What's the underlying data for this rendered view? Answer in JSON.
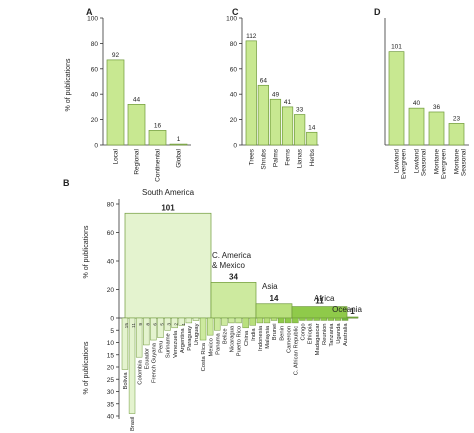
{
  "chart_data": [
    {
      "type": "bar",
      "panel": "A",
      "ylabel": "% of publications",
      "ylim": [
        0,
        100
      ],
      "yticks": [
        0,
        20,
        40,
        60,
        80,
        100
      ],
      "categories": [
        "Local",
        "Regional",
        "Continental",
        "Global"
      ],
      "values": [
        67,
        32,
        11.5,
        0.7
      ],
      "labels": [
        "92",
        "44",
        "16",
        "1"
      ]
    },
    {
      "type": "bar",
      "panel": "C",
      "ylim": [
        0,
        100
      ],
      "yticks": [
        0,
        20,
        40,
        60,
        80,
        100
      ],
      "categories": [
        "Trees",
        "Shrubs",
        "Palms",
        "Ferns",
        "Lianas",
        "Herbs"
      ],
      "values": [
        82,
        47,
        36,
        30,
        24,
        10
      ],
      "labels": [
        "112",
        "64",
        "49",
        "41",
        "33",
        "14"
      ]
    },
    {
      "type": "bar",
      "panel": "D",
      "ylim": [
        0,
        100
      ],
      "yticks": [
        0,
        20,
        40,
        60,
        80,
        100
      ],
      "categories": [
        "Lowland Evergreen",
        "Lowland Seasonal",
        "Montane Evergreen",
        "Montane Seasonal"
      ],
      "values": [
        73.5,
        29,
        26,
        17
      ],
      "labels": [
        "101",
        "40",
        "36",
        "23"
      ]
    },
    {
      "type": "bar",
      "panel": "B",
      "ylabel_top": "% of publications",
      "ylabel_bottom": "% of publications",
      "ylim_top": [
        0,
        80
      ],
      "yticks_top": [
        0,
        20,
        40,
        60,
        80
      ],
      "ylim_bottom": [
        0,
        40
      ],
      "yticks_bottom": [
        0,
        5,
        10,
        15,
        20,
        25,
        30,
        35,
        40
      ],
      "regions": [
        {
          "name": "South America",
          "count": "101",
          "value": 73.5
        },
        {
          "name": "C. America & Mexico",
          "count": "34",
          "value": 25
        },
        {
          "name": "Asia",
          "count": "14",
          "value": 10
        },
        {
          "name": "Africa",
          "count": "11",
          "value": 8
        },
        {
          "name": "Oceania",
          "count": "1",
          "value": 0.7
        }
      ],
      "countries": [
        {
          "name": "Bolivia",
          "value": 21,
          "region": 0
        },
        {
          "name": "Brasil",
          "value": 39,
          "region": 0
        },
        {
          "name": "Colombia",
          "value": 16,
          "region": 0
        },
        {
          "name": "Ecuador",
          "value": 11,
          "region": 0
        },
        {
          "name": "French Guyana",
          "value": 9,
          "region": 0
        },
        {
          "name": "Peru",
          "value": 8,
          "region": 0
        },
        {
          "name": "Suriname",
          "value": 5,
          "region": 0
        },
        {
          "name": "Venezuela",
          "value": 4,
          "region": 0
        },
        {
          "name": "Argentina",
          "value": 3,
          "region": 0
        },
        {
          "name": "Paraguay",
          "value": 2,
          "region": 0
        },
        {
          "name": "Uruguay",
          "value": 1,
          "region": 0
        },
        {
          "name": "Costa Rica",
          "value": 9,
          "region": 1
        },
        {
          "name": "Mexico",
          "value": 7,
          "region": 1
        },
        {
          "name": "Panama",
          "value": 5,
          "region": 1
        },
        {
          "name": "Belize",
          "value": 3,
          "region": 1
        },
        {
          "name": "Nicaragua",
          "value": 2,
          "region": 1
        },
        {
          "name": "Puerto Rico",
          "value": 2,
          "region": 1
        },
        {
          "name": "China",
          "value": 4,
          "region": 2
        },
        {
          "name": "India",
          "value": 3,
          "region": 2
        },
        {
          "name": "Indonesia",
          "value": 2,
          "region": 2
        },
        {
          "name": "Malaysia",
          "value": 2,
          "region": 2
        },
        {
          "name": "Brunei",
          "value": 1,
          "region": 2
        },
        {
          "name": "Benin",
          "value": 2,
          "region": 3
        },
        {
          "name": "Cameroon",
          "value": 2,
          "region": 3
        },
        {
          "name": "C. African Republic",
          "value": 2,
          "region": 3
        },
        {
          "name": "Congo",
          "value": 1,
          "region": 3
        },
        {
          "name": "Ethiopia",
          "value": 1,
          "region": 3
        },
        {
          "name": "Madagascar",
          "value": 1,
          "region": 3
        },
        {
          "name": "Reunion",
          "value": 1,
          "region": 3
        },
        {
          "name": "Tanzania",
          "value": 1,
          "region": 3
        },
        {
          "name": "Uganda",
          "value": 1,
          "region": 3
        },
        {
          "name": "Australia",
          "value": 1,
          "region": 4
        }
      ],
      "small_labels": [
        "15",
        "11",
        "9",
        "8",
        "6",
        "5",
        "3",
        "2",
        "1"
      ],
      "region_colors": [
        "#e4f3cf",
        "#cdea9f",
        "#b9e07d",
        "#8fca4a",
        "#6fb63a"
      ]
    }
  ],
  "bar_color": "#c8e891",
  "bar_stroke": "#6f9a3a"
}
